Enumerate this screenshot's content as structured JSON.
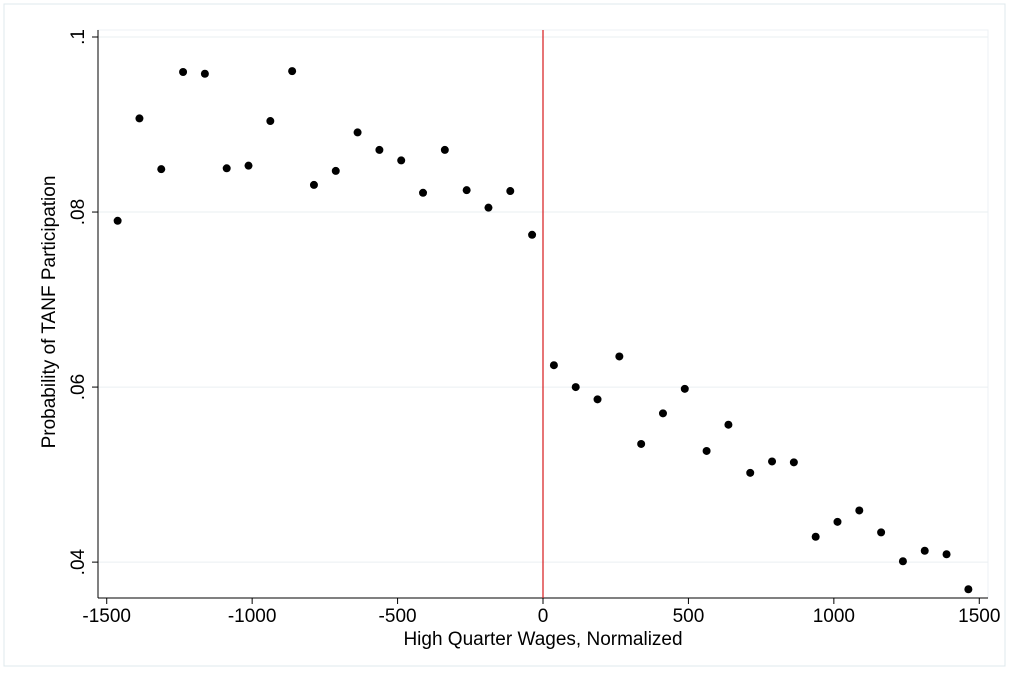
{
  "chart_data": {
    "type": "scatter",
    "x_label": "High Quarter Wages, Normalized",
    "y_label": "Probability of TANF Participation",
    "x": [
      -1462.5,
      -1387.5,
      -1312.5,
      -1237.5,
      -1162.5,
      -1087.5,
      -1012.5,
      -937.5,
      -862.5,
      -787.5,
      -712.5,
      -637.5,
      -562.5,
      -487.5,
      -412.5,
      -337.5,
      -262.5,
      -187.5,
      -112.5,
      -37.5,
      37.5,
      112.5,
      187.5,
      262.5,
      337.5,
      412.5,
      487.5,
      562.5,
      637.5,
      712.5,
      787.5,
      862.5,
      937.5,
      1012.5,
      1087.5,
      1162.5,
      1237.5,
      1312.5,
      1387.5,
      1462.5
    ],
    "values": [
      0.079,
      0.0907,
      0.0849,
      0.096,
      0.0958,
      0.085,
      0.0853,
      0.0904,
      0.0961,
      0.0831,
      0.0847,
      0.0891,
      0.0871,
      0.0859,
      0.0822,
      0.0871,
      0.0825,
      0.0805,
      0.0824,
      0.0774,
      0.0625,
      0.06,
      0.0586,
      0.0635,
      0.0535,
      0.057,
      0.0598,
      0.0527,
      0.0557,
      0.0502,
      0.0515,
      0.0514,
      0.0429,
      0.0446,
      0.0459,
      0.0434,
      0.0401,
      0.0413,
      0.0409,
      0.0369
    ],
    "color": "#000000",
    "xlim": [
      -1530,
      1530
    ],
    "ylim": [
      0.0359,
      0.1008
    ],
    "xticks": [
      -1500,
      -1000,
      -500,
      0,
      500,
      1000,
      1500
    ],
    "yticks": [
      {
        "value": 0.04,
        "label": ".04"
      },
      {
        "value": 0.06,
        "label": ".06"
      },
      {
        "value": 0.08,
        "label": ".08"
      },
      {
        "value": 0.1,
        "label": ".1"
      }
    ],
    "grid": true,
    "xline": 0,
    "xline_color": "#d7191c"
  }
}
